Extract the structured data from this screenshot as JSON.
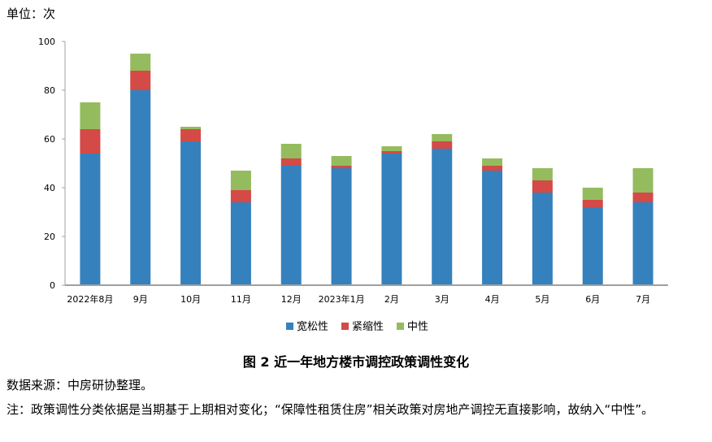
{
  "unit_label": "单位：次",
  "figure_title": "图 2  近一年地方楼市调控政策调性变化",
  "source": "数据来源：中房研协整理。",
  "note": "注：政策调性分类依据是当期基于上期相对变化；“保障性租赁住房”相关政策对房地产调控无直接影响，故纳入“中性”。",
  "chart_data": {
    "type": "bar",
    "stacked": true,
    "categories": [
      "2022年8月",
      "9月",
      "10月",
      "11月",
      "12月",
      "2023年1月",
      "2月",
      "3月",
      "4月",
      "5月",
      "6月",
      "7月"
    ],
    "series": [
      {
        "name": "宽松性",
        "color": "#3581BD",
        "values": [
          54,
          80,
          59,
          34,
          49,
          48,
          54,
          56,
          47,
          38,
          32,
          34
        ]
      },
      {
        "name": "紧缩性",
        "color": "#D34A47",
        "values": [
          10,
          8,
          5,
          5,
          3,
          1,
          1,
          3,
          2,
          5,
          3,
          4
        ]
      },
      {
        "name": "中性",
        "color": "#94BC5E",
        "values": [
          11,
          7,
          1,
          8,
          6,
          4,
          2,
          3,
          3,
          5,
          5,
          10
        ]
      }
    ],
    "ylim": [
      0,
      100
    ],
    "yticks": [
      0,
      20,
      40,
      60,
      80,
      100
    ],
    "legend": "bottom",
    "grid": false
  }
}
